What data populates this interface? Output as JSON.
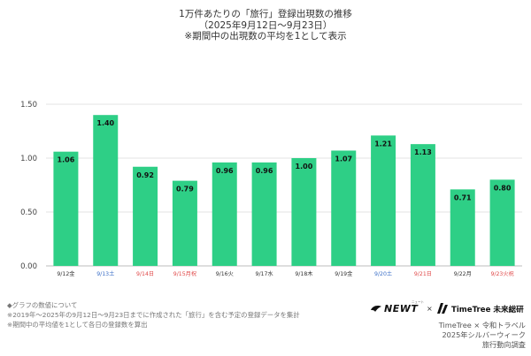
{
  "title": {
    "line1": "1万件あたりの「旅行」登録出現数の推移",
    "line2": "（2025年9月12日〜9月23日）",
    "line3": "※期間中の出現数の平均を1として表示"
  },
  "chart_data": {
    "type": "bar",
    "categories": [
      "9/12金",
      "9/13土",
      "9/14日",
      "9/15月祝",
      "9/16火",
      "9/17水",
      "9/18木",
      "9/19金",
      "9/20土",
      "9/21日",
      "9/22月",
      "9/23火祝"
    ],
    "values": [
      1.06,
      1.4,
      0.92,
      0.79,
      0.96,
      0.96,
      1.0,
      1.07,
      1.21,
      1.13,
      0.71,
      0.8
    ],
    "value_labels": [
      "1.06",
      "1.40",
      "0.92",
      "0.79",
      "0.96",
      "0.96",
      "1.00",
      "1.07",
      "1.21",
      "1.13",
      "0.71",
      "0.80"
    ],
    "category_colors": [
      "#333333",
      "#3b6fc7",
      "#e04848",
      "#e04848",
      "#333333",
      "#333333",
      "#333333",
      "#333333",
      "#3b6fc7",
      "#e04848",
      "#333333",
      "#e04848"
    ],
    "yticks": [
      "0.00",
      "0.50",
      "1.00",
      "1.50"
    ],
    "ylim": [
      0,
      1.5
    ],
    "grid": true,
    "bar_color": "#2ecf86",
    "xlabel": "",
    "ylabel": ""
  },
  "notes": {
    "line1": "◆グラフの数値について",
    "line2": "※2019年〜2025年の9月12日〜9月23日までに作成された「旅行」を含む予定の登録データを集計",
    "line3": "※期間中の平均値を1として各日の登録数を算出"
  },
  "logos": {
    "newt": "NEWT",
    "newt_sup": "ニュート",
    "cross": "×",
    "timetree": "TimeTree 未来総研"
  },
  "credit": {
    "line1": "TimeTree × 令和トラベル",
    "line2": "2025年シルバーウィーク",
    "line3": "旅行動向調査"
  }
}
